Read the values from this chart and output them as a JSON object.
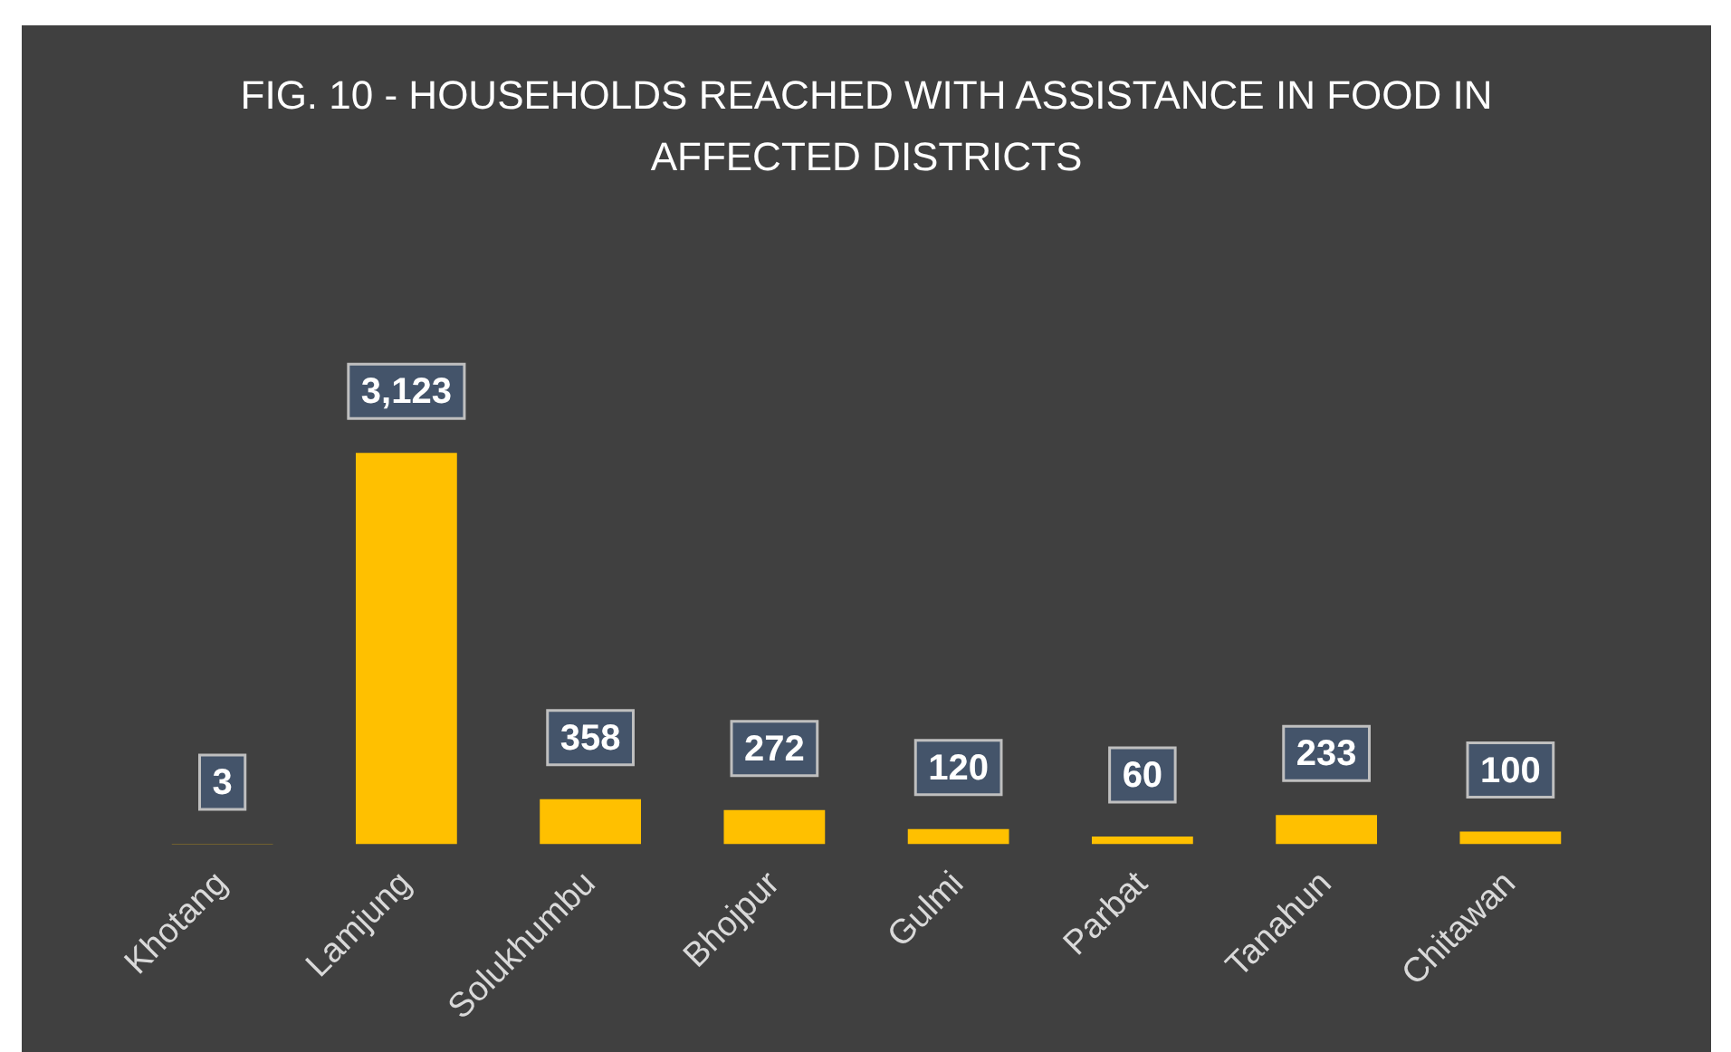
{
  "chart_data": {
    "type": "bar",
    "title": "FIG. 10 - HOUSEHOLDS REACHED WITH ASSISTANCE IN FOOD IN AFFECTED DISTRICTS",
    "categories": [
      "Khotang",
      "Lamjung",
      "Solukhumbu",
      "Bhojpur",
      "Gulmi",
      "Parbat",
      "Tanahun",
      "Chitawan"
    ],
    "values": [
      3,
      3123,
      358,
      272,
      120,
      60,
      233,
      100
    ],
    "value_labels": [
      "3",
      "3,123",
      "358",
      "272",
      "120",
      "60",
      "233",
      "100"
    ],
    "color": "#ffc000"
  }
}
